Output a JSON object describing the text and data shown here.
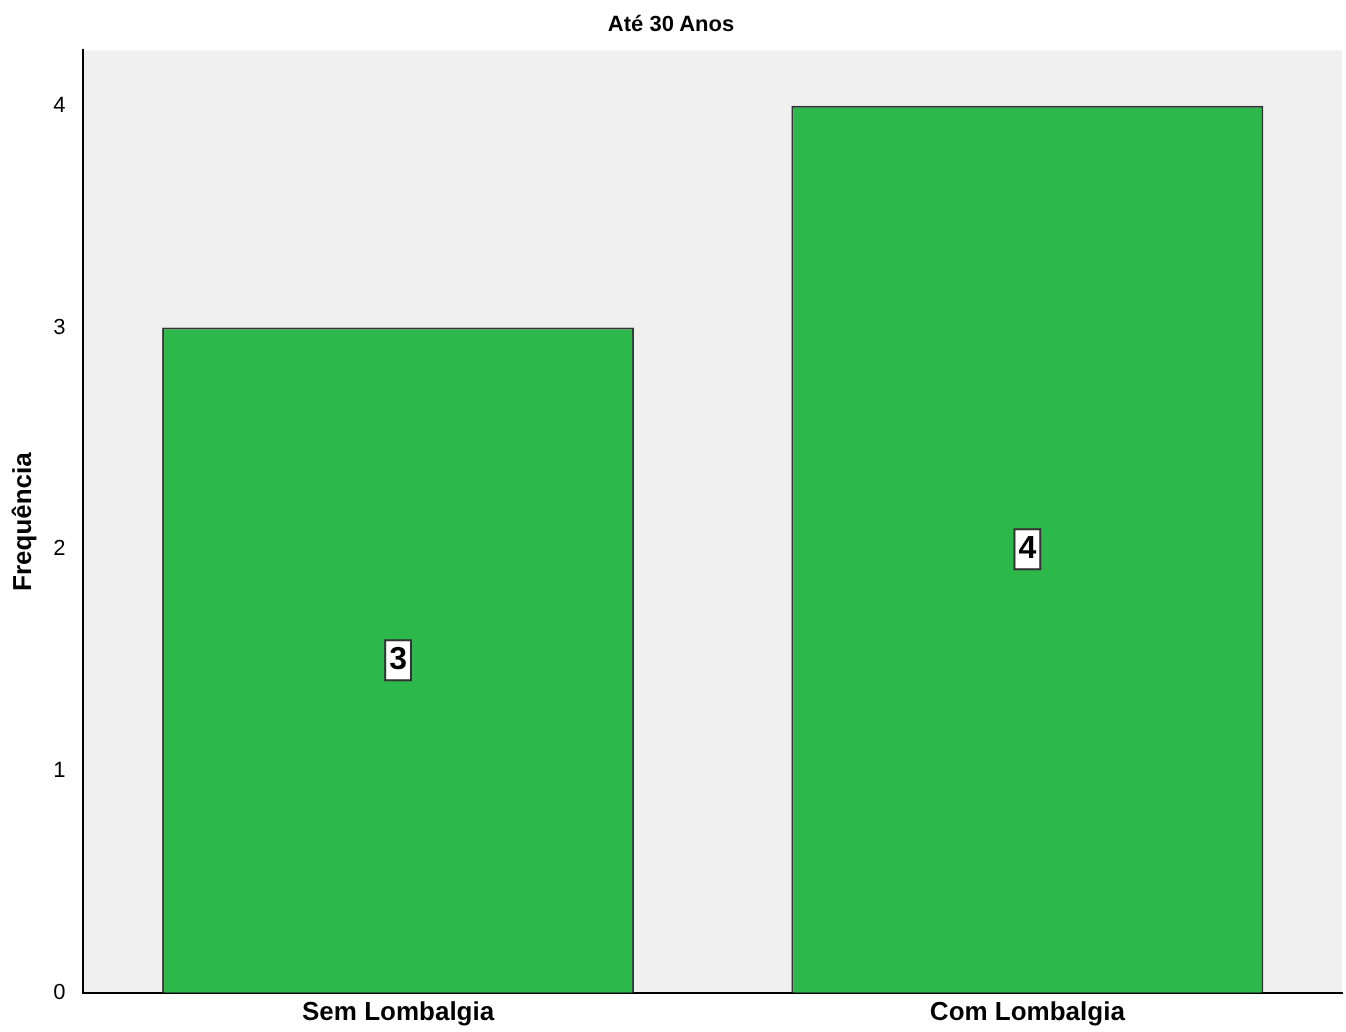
{
  "chart_data": {
    "type": "bar",
    "title": "Até 30 Anos",
    "ylabel": "Frequência",
    "categories": [
      "Sem Lombalgia",
      "Com Lombalgia"
    ],
    "values": [
      3,
      4
    ],
    "color": "#2db84b",
    "ylim": [
      0,
      4.25
    ],
    "yticks": [
      0,
      1,
      2,
      3,
      4
    ],
    "grid": false,
    "legend": false,
    "data_labels": true
  }
}
